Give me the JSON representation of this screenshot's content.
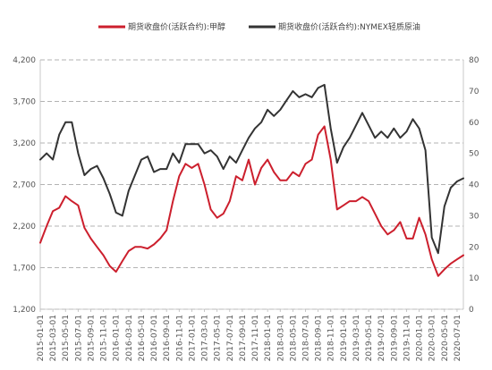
{
  "chart_data": {
    "type": "line",
    "legend_position": "top",
    "grid": true,
    "y_left": {
      "ticks": [
        "4,200",
        "3,700",
        "3,200",
        "2,700",
        "2,200",
        "1,700",
        "1,200"
      ],
      "range": [
        1200,
        4200
      ]
    },
    "y_right": {
      "ticks": [
        "80",
        "70",
        "60",
        "50",
        "40",
        "30",
        "20",
        "10",
        "0"
      ],
      "range": [
        0,
        80
      ]
    },
    "x_ticks": [
      "2015-01-01",
      "2015-03-01",
      "2015-05-01",
      "2015-07-01",
      "2015-09-01",
      "2015-11-01",
      "2016-01-01",
      "2016-03-01",
      "2016-05-01",
      "2016-07-01",
      "2016-09-01",
      "2016-11-01",
      "2017-01-01",
      "2017-03-01",
      "2017-05-01",
      "2017-07-01",
      "2017-09-01",
      "2017-11-01",
      "2018-01-01",
      "2018-03-01",
      "2018-05-01",
      "2018-07-01",
      "2018-09-01",
      "2018-11-01",
      "2019-01-01",
      "2019-03-01",
      "2019-05-01",
      "2019-07-01",
      "2019-09-01",
      "2019-11-01",
      "2020-01-01",
      "2020-03-01",
      "2020-05-01",
      "2020-07-01"
    ],
    "series": [
      {
        "name": "期货收盘价(活跃合约):甲醇",
        "color": "#cc1f2d",
        "axis": "left",
        "x": [
          "2015-01",
          "2015-02",
          "2015-03",
          "2015-04",
          "2015-05",
          "2015-06",
          "2015-07",
          "2015-08",
          "2015-09",
          "2015-10",
          "2015-11",
          "2015-12",
          "2016-01",
          "2016-02",
          "2016-03",
          "2016-04",
          "2016-05",
          "2016-06",
          "2016-07",
          "2016-08",
          "2016-09",
          "2016-10",
          "2016-11",
          "2016-12",
          "2017-01",
          "2017-02",
          "2017-03",
          "2017-04",
          "2017-05",
          "2017-06",
          "2017-07",
          "2017-08",
          "2017-09",
          "2017-10",
          "2017-11",
          "2017-12",
          "2018-01",
          "2018-02",
          "2018-03",
          "2018-04",
          "2018-05",
          "2018-06",
          "2018-07",
          "2018-08",
          "2018-09",
          "2018-10",
          "2018-11",
          "2018-12",
          "2019-01",
          "2019-02",
          "2019-03",
          "2019-04",
          "2019-05",
          "2019-06",
          "2019-07",
          "2019-08",
          "2019-09",
          "2019-10",
          "2019-11",
          "2019-12",
          "2020-01",
          "2020-02",
          "2020-03",
          "2020-04",
          "2020-05",
          "2020-06",
          "2020-07",
          "2020-08"
        ],
        "values": [
          2000,
          2200,
          2380,
          2420,
          2560,
          2500,
          2450,
          2180,
          2050,
          1950,
          1850,
          1720,
          1650,
          1780,
          1900,
          1950,
          1950,
          1930,
          1980,
          2050,
          2150,
          2500,
          2800,
          2950,
          2900,
          2950,
          2700,
          2400,
          2300,
          2350,
          2500,
          2800,
          2750,
          3000,
          2700,
          2900,
          3000,
          2850,
          2750,
          2750,
          2850,
          2800,
          2950,
          3000,
          3300,
          3400,
          3000,
          2400,
          2450,
          2500,
          2500,
          2550,
          2500,
          2350,
          2200,
          2100,
          2150,
          2250,
          2050,
          2050,
          2300,
          2100,
          1800,
          1600,
          1680,
          1750,
          1800,
          1850
        ]
      },
      {
        "name": "期货收盘价(活跃合约):NYMEX轻质原油",
        "color": "#333333",
        "axis": "right",
        "x": [
          "2015-01",
          "2015-02",
          "2015-03",
          "2015-04",
          "2015-05",
          "2015-06",
          "2015-07",
          "2015-08",
          "2015-09",
          "2015-10",
          "2015-11",
          "2015-12",
          "2016-01",
          "2016-02",
          "2016-03",
          "2016-04",
          "2016-05",
          "2016-06",
          "2016-07",
          "2016-08",
          "2016-09",
          "2016-10",
          "2016-11",
          "2016-12",
          "2017-01",
          "2017-02",
          "2017-03",
          "2017-04",
          "2017-05",
          "2017-06",
          "2017-07",
          "2017-08",
          "2017-09",
          "2017-10",
          "2017-11",
          "2017-12",
          "2018-01",
          "2018-02",
          "2018-03",
          "2018-04",
          "2018-05",
          "2018-06",
          "2018-07",
          "2018-08",
          "2018-09",
          "2018-10",
          "2018-11",
          "2018-12",
          "2019-01",
          "2019-02",
          "2019-03",
          "2019-04",
          "2019-05",
          "2019-06",
          "2019-07",
          "2019-08",
          "2019-09",
          "2019-10",
          "2019-11",
          "2019-12",
          "2020-01",
          "2020-02",
          "2020-03",
          "2020-04",
          "2020-05",
          "2020-06",
          "2020-07",
          "2020-08"
        ],
        "values": [
          48,
          50,
          48,
          56,
          60,
          60,
          50,
          43,
          45,
          46,
          42,
          37,
          31,
          30,
          38,
          43,
          48,
          49,
          44,
          45,
          45,
          50,
          47,
          53,
          53,
          53,
          50,
          51,
          49,
          45,
          49,
          47,
          51,
          55,
          58,
          60,
          64,
          62,
          64,
          67,
          70,
          68,
          69,
          68,
          71,
          72,
          58,
          47,
          52,
          55,
          59,
          63,
          59,
          55,
          57,
          55,
          58,
          55,
          57,
          61,
          58,
          51,
          23,
          18,
          33,
          39,
          41,
          42
        ]
      }
    ]
  }
}
